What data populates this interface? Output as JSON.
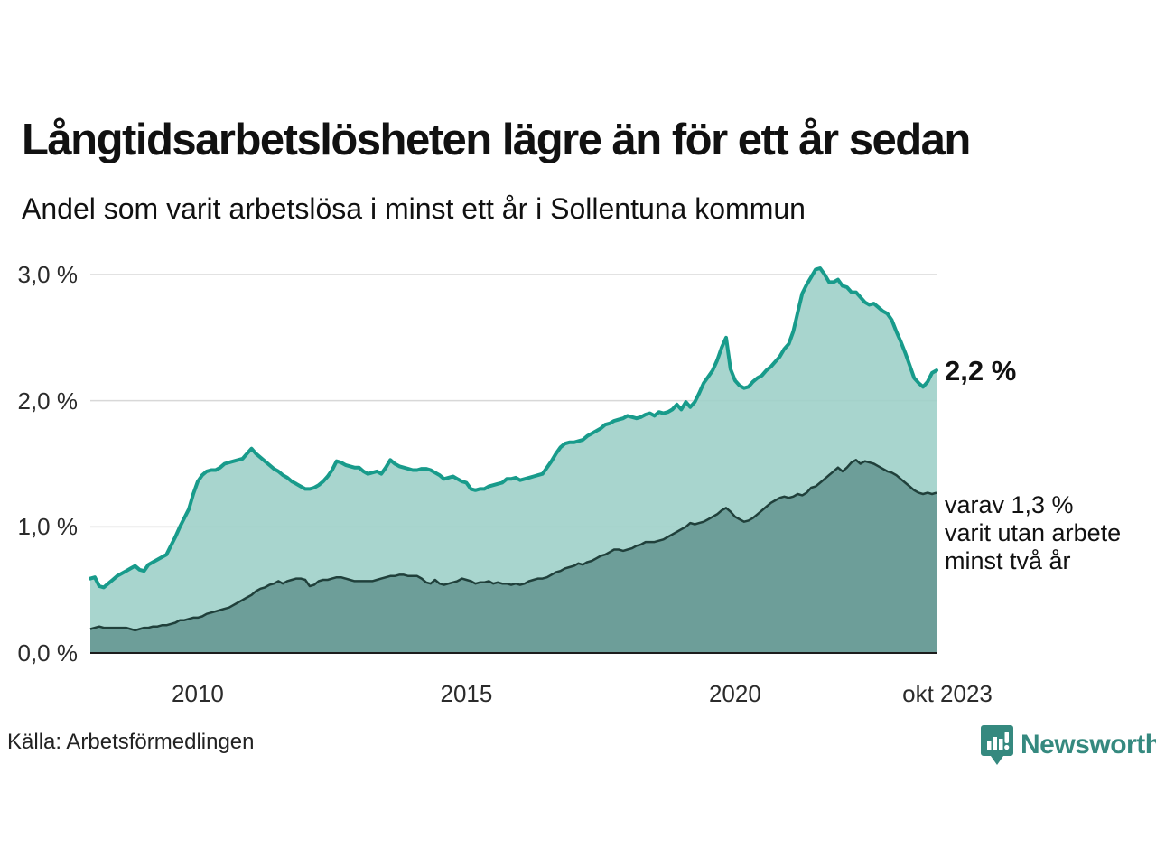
{
  "header": {
    "title": "Långtidsarbetslösheten lägre än för ett år sedan",
    "subtitle": "Andel som varit arbetslösa i minst ett år i Sollentuna kommun"
  },
  "annotations": {
    "latest_total": "2,2 %",
    "two_year_line1": "varav 1,3 %",
    "two_year_line2": "varit utan arbete",
    "two_year_line3": "minst två år"
  },
  "source": {
    "label": "Källa: Arbetsförmedlingen"
  },
  "branding": {
    "wordmark": "Newsworthy"
  },
  "chart_data": {
    "type": "area",
    "title": "Långtidsarbetslösheten lägre än för ett år sedan",
    "subtitle": "Andel som varit arbetslösa i minst ett år i Sollentuna kommun",
    "unit": "%",
    "frequency": "monthly",
    "x_start": "jan 2008",
    "x_end": "okt 2023",
    "ylim": [
      0,
      3.0
    ],
    "grid": "horizontal",
    "legend": "inline-annotations",
    "x_ticks": [
      {
        "label": "2010",
        "month_index": 24
      },
      {
        "label": "2015",
        "month_index": 84
      },
      {
        "label": "2020",
        "month_index": 144
      },
      {
        "label": "okt 2023",
        "month_index": 189
      }
    ],
    "y_ticks": [
      {
        "label": "0,0 %",
        "value": 0
      },
      {
        "label": "1,0 %",
        "value": 1
      },
      {
        "label": "2,0 %",
        "value": 2
      },
      {
        "label": "3,0 %",
        "value": 3
      }
    ],
    "colors": {
      "total_line": "#189b8b",
      "total_fill": "#9fd0c9",
      "two_year_line": "#20403b",
      "two_year_fill": "#6d9e99",
      "grid": "#d8d8d8",
      "axis": "#1c1c1c",
      "brand": "#35897f"
    },
    "series": [
      {
        "name": "arbetslösa minst ett år",
        "latest_value": 2.2,
        "values": [
          0.59,
          0.6,
          0.53,
          0.52,
          0.55,
          0.58,
          0.61,
          0.63,
          0.65,
          0.67,
          0.69,
          0.66,
          0.65,
          0.7,
          0.72,
          0.74,
          0.76,
          0.78,
          0.85,
          0.92,
          1.0,
          1.07,
          1.14,
          1.26,
          1.36,
          1.41,
          1.44,
          1.45,
          1.45,
          1.47,
          1.5,
          1.51,
          1.52,
          1.53,
          1.54,
          1.58,
          1.62,
          1.58,
          1.55,
          1.52,
          1.49,
          1.46,
          1.44,
          1.41,
          1.39,
          1.36,
          1.34,
          1.32,
          1.3,
          1.3,
          1.31,
          1.33,
          1.36,
          1.4,
          1.45,
          1.52,
          1.51,
          1.49,
          1.48,
          1.47,
          1.47,
          1.44,
          1.42,
          1.43,
          1.44,
          1.42,
          1.47,
          1.53,
          1.5,
          1.48,
          1.47,
          1.46,
          1.45,
          1.45,
          1.46,
          1.46,
          1.45,
          1.43,
          1.41,
          1.38,
          1.39,
          1.4,
          1.38,
          1.36,
          1.35,
          1.3,
          1.29,
          1.3,
          1.3,
          1.32,
          1.33,
          1.34,
          1.35,
          1.38,
          1.38,
          1.39,
          1.37,
          1.38,
          1.39,
          1.4,
          1.41,
          1.42,
          1.47,
          1.52,
          1.58,
          1.63,
          1.66,
          1.67,
          1.67,
          1.68,
          1.69,
          1.72,
          1.74,
          1.76,
          1.78,
          1.81,
          1.82,
          1.84,
          1.85,
          1.86,
          1.88,
          1.87,
          1.86,
          1.87,
          1.89,
          1.9,
          1.88,
          1.91,
          1.9,
          1.91,
          1.93,
          1.97,
          1.93,
          1.99,
          1.95,
          1.99,
          2.06,
          2.14,
          2.19,
          2.24,
          2.32,
          2.42,
          2.5,
          2.25,
          2.16,
          2.12,
          2.1,
          2.11,
          2.15,
          2.18,
          2.2,
          2.24,
          2.27,
          2.31,
          2.35,
          2.41,
          2.45,
          2.55,
          2.7,
          2.85,
          2.92,
          2.98,
          3.04,
          3.05,
          3.0,
          2.94,
          2.94,
          2.96,
          2.91,
          2.9,
          2.86,
          2.86,
          2.82,
          2.78,
          2.76,
          2.77,
          2.74,
          2.71,
          2.69,
          2.64,
          2.55,
          2.47,
          2.38,
          2.28,
          2.18,
          2.14,
          2.11,
          2.15,
          2.22,
          2.24
        ]
      },
      {
        "name": "varav varit utan arbete minst två år",
        "latest_value": 1.3,
        "values": [
          0.19,
          0.2,
          0.21,
          0.2,
          0.2,
          0.2,
          0.2,
          0.2,
          0.2,
          0.19,
          0.18,
          0.19,
          0.2,
          0.2,
          0.21,
          0.21,
          0.22,
          0.22,
          0.23,
          0.24,
          0.26,
          0.26,
          0.27,
          0.28,
          0.28,
          0.29,
          0.31,
          0.32,
          0.33,
          0.34,
          0.35,
          0.36,
          0.38,
          0.4,
          0.42,
          0.44,
          0.46,
          0.49,
          0.51,
          0.52,
          0.54,
          0.55,
          0.57,
          0.55,
          0.57,
          0.58,
          0.59,
          0.59,
          0.58,
          0.53,
          0.54,
          0.57,
          0.58,
          0.58,
          0.59,
          0.6,
          0.6,
          0.59,
          0.58,
          0.57,
          0.57,
          0.57,
          0.57,
          0.57,
          0.58,
          0.59,
          0.6,
          0.61,
          0.61,
          0.62,
          0.62,
          0.61,
          0.61,
          0.61,
          0.59,
          0.56,
          0.55,
          0.58,
          0.55,
          0.54,
          0.55,
          0.56,
          0.57,
          0.59,
          0.58,
          0.57,
          0.55,
          0.56,
          0.56,
          0.57,
          0.55,
          0.56,
          0.55,
          0.55,
          0.54,
          0.55,
          0.54,
          0.55,
          0.57,
          0.58,
          0.59,
          0.59,
          0.6,
          0.62,
          0.64,
          0.65,
          0.67,
          0.68,
          0.69,
          0.71,
          0.7,
          0.72,
          0.73,
          0.75,
          0.77,
          0.78,
          0.8,
          0.82,
          0.82,
          0.81,
          0.82,
          0.83,
          0.85,
          0.86,
          0.88,
          0.88,
          0.88,
          0.89,
          0.9,
          0.92,
          0.94,
          0.96,
          0.98,
          1.0,
          1.03,
          1.02,
          1.03,
          1.04,
          1.06,
          1.08,
          1.1,
          1.13,
          1.15,
          1.12,
          1.08,
          1.06,
          1.04,
          1.05,
          1.07,
          1.1,
          1.13,
          1.16,
          1.19,
          1.21,
          1.23,
          1.24,
          1.23,
          1.24,
          1.26,
          1.25,
          1.27,
          1.31,
          1.32,
          1.35,
          1.38,
          1.41,
          1.44,
          1.47,
          1.44,
          1.47,
          1.51,
          1.53,
          1.5,
          1.52,
          1.51,
          1.5,
          1.48,
          1.46,
          1.44,
          1.43,
          1.41,
          1.38,
          1.35,
          1.32,
          1.29,
          1.27,
          1.26,
          1.27,
          1.26,
          1.27
        ]
      }
    ]
  }
}
